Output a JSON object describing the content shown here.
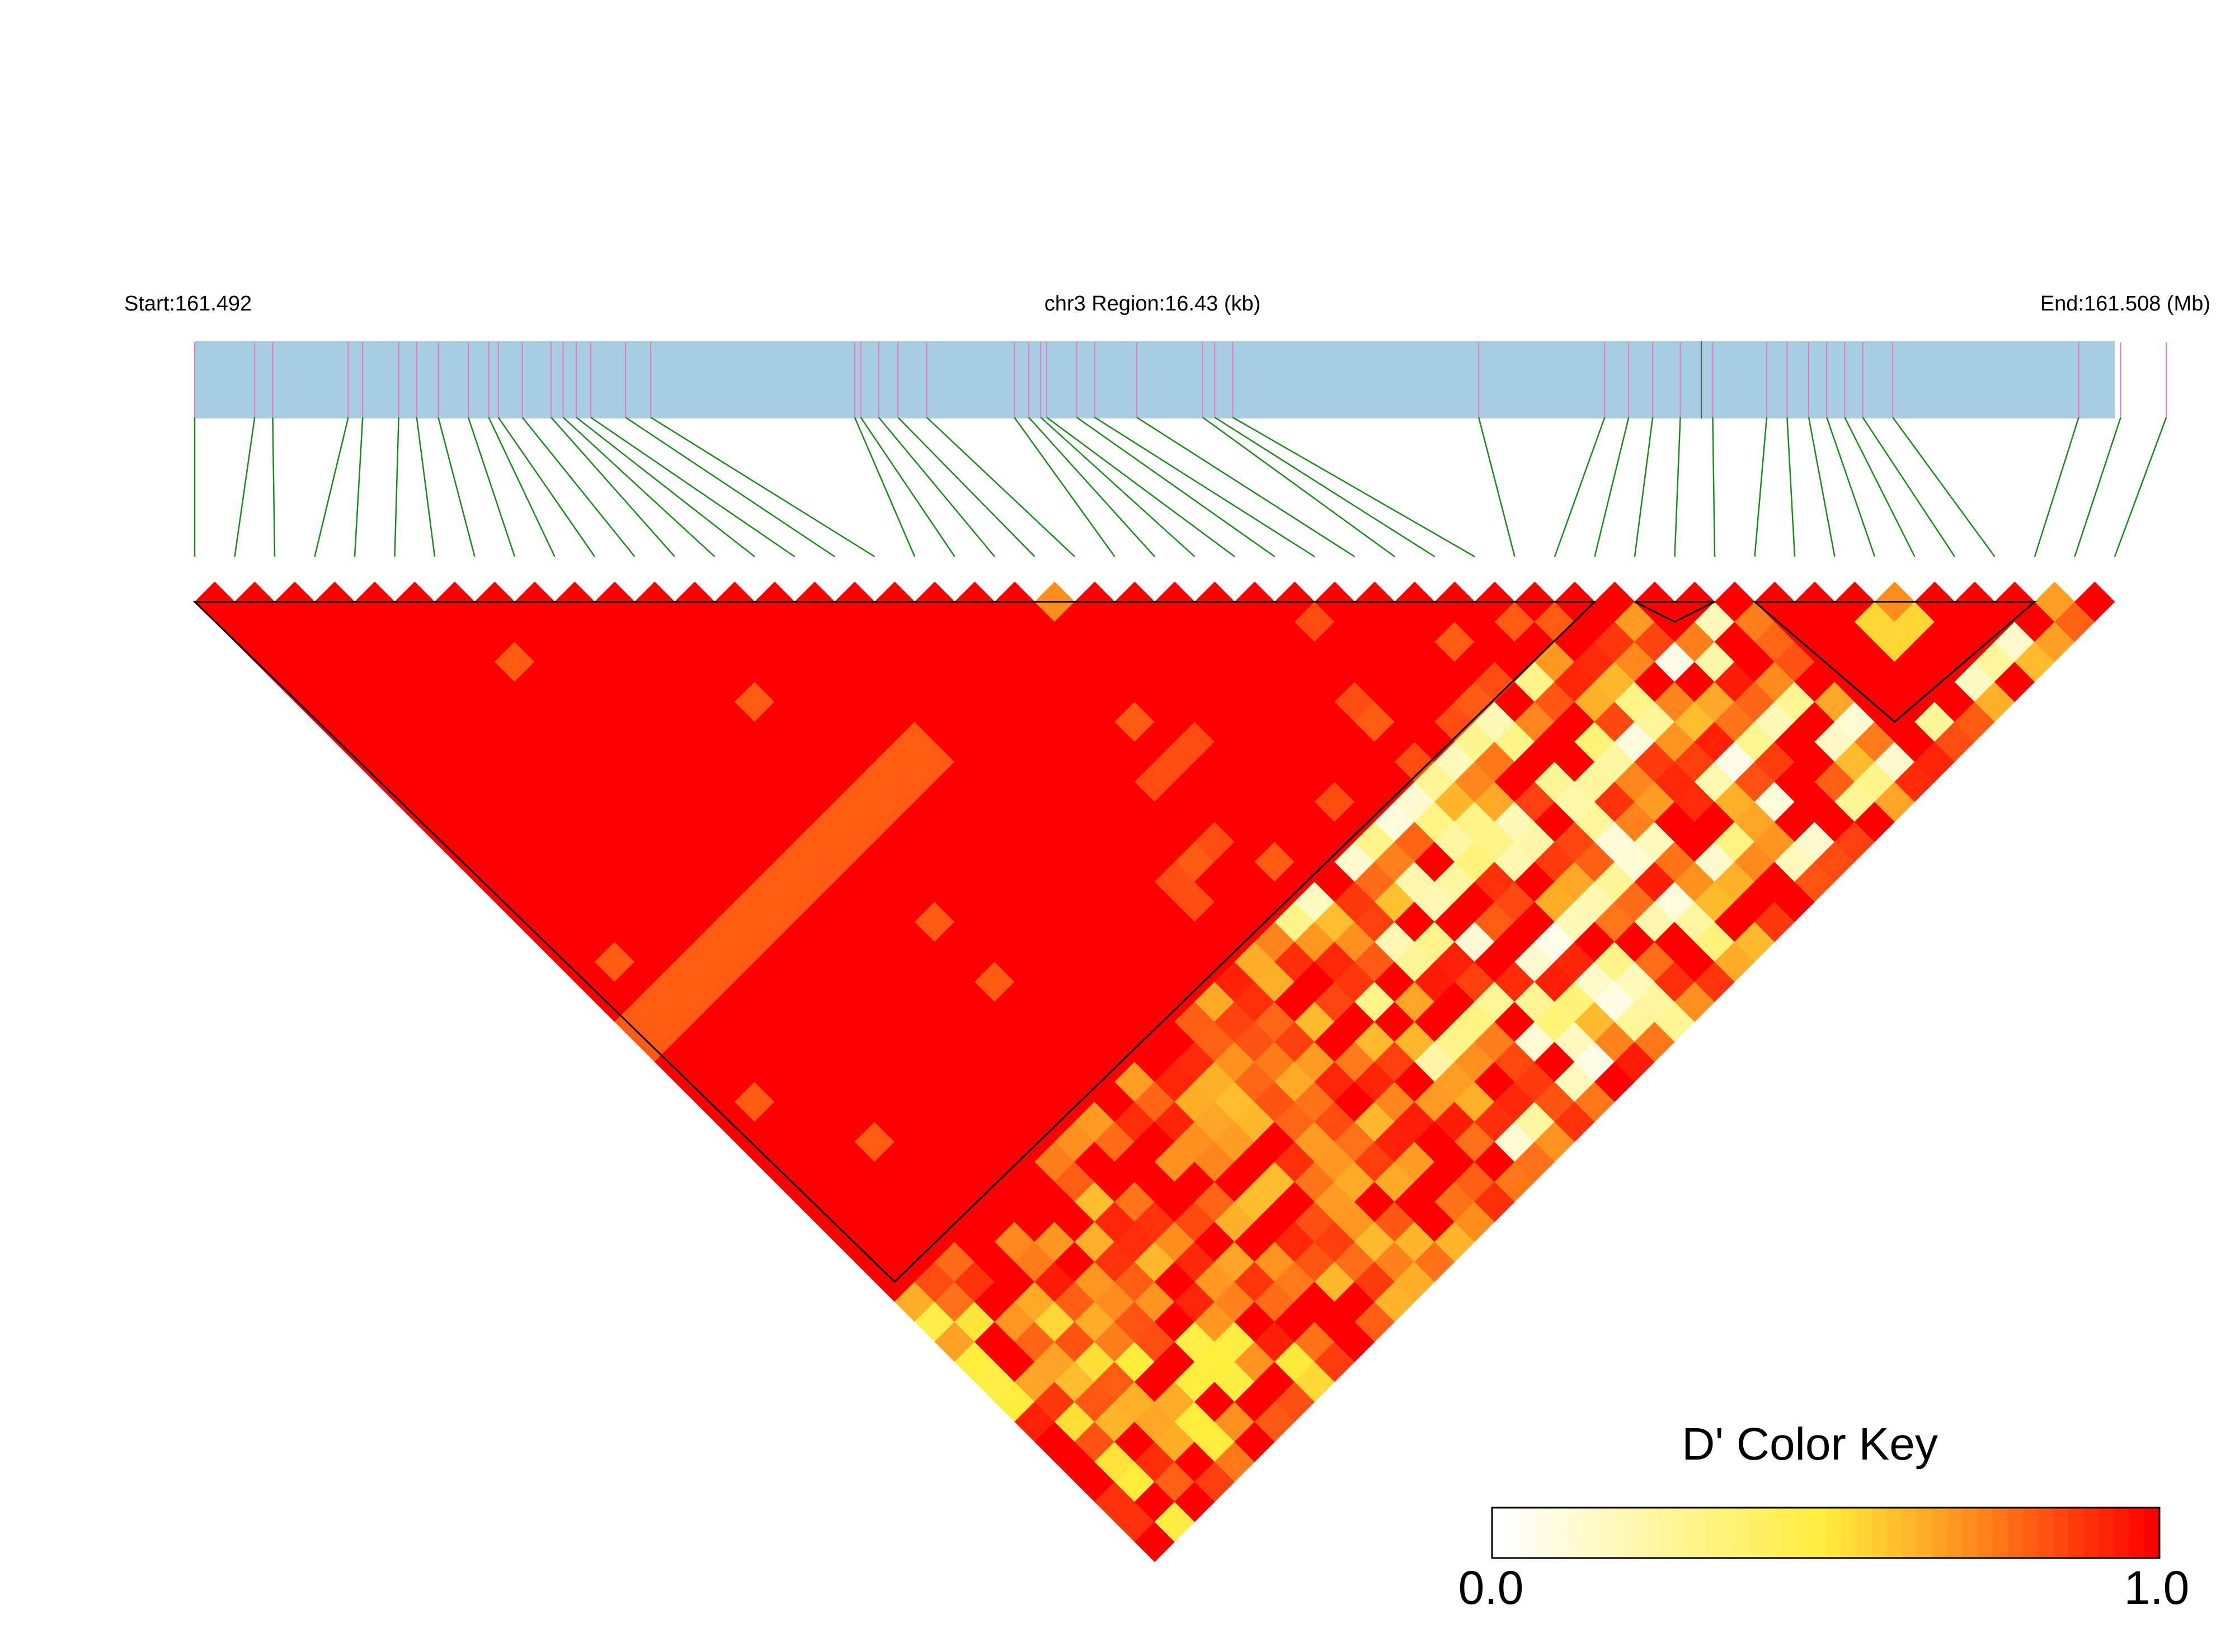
{
  "header": {
    "start_label": "Start:161.492",
    "region_label": "chr3 Region:16.43 (kb)",
    "end_label": "End:161.508 (Mb)"
  },
  "colors": {
    "track_fill": "#a8cde0",
    "snp_tick": "#e377c2",
    "connector": "#1a8a1a",
    "d_prime_high": "#ff0000",
    "d_prime_low": "#ffffff"
  },
  "chart_data": {
    "type": "heatmap",
    "subtype": "LD triangle (Haploview-style)",
    "chromosome": "chr3",
    "region_start_mb": 161.492,
    "region_end_mb": 161.508,
    "region_length_kb": 16.43,
    "snp_count": 49,
    "snp_positions_mb": [
      161.492,
      161.4925,
      161.49265,
      161.49328,
      161.4934,
      161.4937,
      161.49385,
      161.49403,
      161.49428,
      161.49445,
      161.49453,
      161.49473,
      161.49497,
      161.49507,
      161.49518,
      161.4953,
      161.49559,
      161.4958,
      161.4975,
      161.49755,
      161.4977,
      161.49786,
      161.4981,
      161.49883,
      161.49895,
      161.49905,
      161.4991,
      161.49935,
      161.4995,
      161.49985,
      161.5004,
      161.5005,
      161.50065,
      161.5027,
      161.50375,
      161.50395,
      161.50415,
      161.50438,
      161.50465,
      161.5051,
      161.50527,
      161.50545,
      161.5056,
      161.50575,
      161.5059,
      161.50615,
      161.5077,
      161.50805,
      161.50843
    ],
    "block_ranges": [
      [
        1,
        36
      ],
      [
        37,
        39
      ],
      [
        40,
        47
      ]
    ],
    "color_key": {
      "title": "D' Color Key",
      "min_label": "0.0",
      "max_label": "1.0",
      "min": 0.0,
      "max": 1.0
    }
  }
}
